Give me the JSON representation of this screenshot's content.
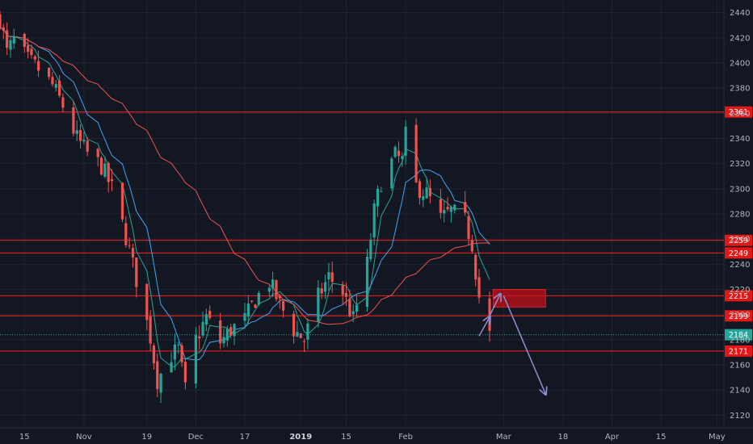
{
  "chart_data": {
    "type": "candlestick",
    "y_axis": {
      "range": [
        2110,
        2450
      ],
      "ticks": [
        2120,
        2140,
        2160,
        2180,
        2200,
        2220,
        2240,
        2260,
        2280,
        2300,
        2320,
        2340,
        2360,
        2380,
        2400,
        2420,
        2440
      ],
      "position": "right"
    },
    "x_axis": {
      "start": "2018-10-08",
      "end": "2019-05-03",
      "ticks": [
        {
          "date": "2018-10-15",
          "label": "15",
          "bold": false
        },
        {
          "date": "2018-11-01",
          "label": "Nov",
          "bold": false
        },
        {
          "date": "2018-11-19",
          "label": "19",
          "bold": false
        },
        {
          "date": "2018-12-03",
          "label": "Dec",
          "bold": false
        },
        {
          "date": "2018-12-17",
          "label": "17",
          "bold": false
        },
        {
          "date": "2019-01-02",
          "label": "2019",
          "bold": true
        },
        {
          "date": "2019-01-15",
          "label": "15",
          "bold": false
        },
        {
          "date": "2019-02-01",
          "label": "Feb",
          "bold": false
        },
        {
          "date": "2019-03-01",
          "label": "Mar",
          "bold": false
        },
        {
          "date": "2019-03-18",
          "label": "18",
          "bold": false
        },
        {
          "date": "2019-04-01",
          "label": "Apr",
          "bold": false
        },
        {
          "date": "2019-04-15",
          "label": "15",
          "bold": false
        },
        {
          "date": "2019-05-01",
          "label": "May",
          "bold": false
        }
      ]
    },
    "horizontal_levels": [
      {
        "value": 2361,
        "label": "2361"
      },
      {
        "value": 2259,
        "label": "2259"
      },
      {
        "value": 2249,
        "label": "2249"
      },
      {
        "value": 2215,
        "label": "2215"
      },
      {
        "value": 2199,
        "label": "2199"
      },
      {
        "value": 2171,
        "label": "2171"
      }
    ],
    "current_price": {
      "value": 2184,
      "label": "2184"
    },
    "zone": {
      "x_start": "2019-02-26",
      "x_end": "2019-03-13",
      "y_low": 2206,
      "y_high": 2220
    },
    "projection_arrows": [
      {
        "from": [
          "2019-02-22",
          2183
        ],
        "to": [
          "2019-02-25",
          2198
        ]
      },
      {
        "from": [
          "2019-02-25",
          2199
        ],
        "to": [
          "2019-02-28",
          2216
        ]
      },
      {
        "from": [
          "2019-03-01",
          2215
        ],
        "to": [
          "2019-03-13",
          2137
        ]
      }
    ],
    "ohlc_anchors": [
      [
        "2018-10-08",
        2436
      ],
      [
        "2018-10-10",
        2408
      ],
      [
        "2018-10-12",
        2418
      ],
      [
        "2018-10-16",
        2402
      ],
      [
        "2018-10-19",
        2395
      ],
      [
        "2018-10-23",
        2382
      ],
      [
        "2018-10-26",
        2366
      ],
      [
        "2018-10-30",
        2340
      ],
      [
        "2018-11-02",
        2328
      ],
      [
        "2018-11-06",
        2318
      ],
      [
        "2018-11-09",
        2300
      ],
      [
        "2018-11-13",
        2262
      ],
      [
        "2018-11-16",
        2228
      ],
      [
        "2018-11-20",
        2182
      ],
      [
        "2018-11-22",
        2148
      ],
      [
        "2018-11-26",
        2168
      ],
      [
        "2018-11-28",
        2172
      ],
      [
        "2018-11-30",
        2140
      ],
      [
        "2018-12-03",
        2180
      ],
      [
        "2018-12-06",
        2198
      ],
      [
        "2018-12-10",
        2178
      ],
      [
        "2018-12-13",
        2188
      ],
      [
        "2018-12-17",
        2196
      ],
      [
        "2018-12-20",
        2212
      ],
      [
        "2018-12-24",
        2226
      ],
      [
        "2018-12-27",
        2208
      ],
      [
        "2018-12-31",
        2188
      ],
      [
        "2019-01-03",
        2180
      ],
      [
        "2019-01-07",
        2214
      ],
      [
        "2019-01-10",
        2230
      ],
      [
        "2019-01-14",
        2218
      ],
      [
        "2019-01-17",
        2196
      ],
      [
        "2019-01-21",
        2240
      ],
      [
        "2019-01-23",
        2282
      ],
      [
        "2019-01-25",
        2306
      ],
      [
        "2019-01-29",
        2326
      ],
      [
        "2019-01-31",
        2322
      ],
      [
        "2019-02-01",
        2342
      ],
      [
        "2019-02-04",
        2302
      ],
      [
        "2019-02-07",
        2296
      ],
      [
        "2019-02-11",
        2276
      ],
      [
        "2019-02-14",
        2282
      ],
      [
        "2019-02-18",
        2274
      ],
      [
        "2019-02-20",
        2256
      ],
      [
        "2019-02-22",
        2214
      ],
      [
        "2019-02-25",
        2184
      ]
    ],
    "moving_averages": [
      {
        "color": "#26a69a",
        "period": 5
      },
      {
        "color": "#42a5f5",
        "period": 10
      },
      {
        "color": "#ef5350",
        "period": 40
      }
    ],
    "colors": {
      "background": "#131722",
      "grid": "#1f2433",
      "up": "#26a69a",
      "down": "#ef5350",
      "level_line": "#ff1e1e",
      "level_label_bg": "#e51616",
      "current_price": "#26a69a",
      "zone": "#c4101a",
      "arrow": "#8f8fcf"
    }
  }
}
